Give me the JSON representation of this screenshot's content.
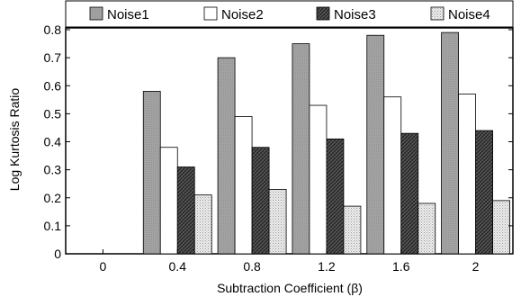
{
  "chart_data": {
    "type": "bar",
    "xlabel": "Subtraction Coefficient (β)",
    "ylabel": "Log Kurtosis Ratio",
    "categories": [
      "0",
      "0.4",
      "0.8",
      "1.2",
      "1.6",
      "2"
    ],
    "ylim": [
      0,
      0.8
    ],
    "yticks": [
      "0",
      "0.1",
      "0.2",
      "0.3",
      "0.4",
      "0.5",
      "0.6",
      "0.7",
      "0.8"
    ],
    "grid": false,
    "legend_position": "top",
    "series": [
      {
        "name": "Noise1",
        "pattern": "gray-shade",
        "values": [
          0,
          0.58,
          0.7,
          0.75,
          0.78,
          0.79
        ]
      },
      {
        "name": "Noise2",
        "pattern": "white",
        "values": [
          0,
          0.38,
          0.49,
          0.53,
          0.56,
          0.57
        ]
      },
      {
        "name": "Noise3",
        "pattern": "dark-crosshatch",
        "values": [
          0,
          0.31,
          0.38,
          0.41,
          0.43,
          0.44
        ]
      },
      {
        "name": "Noise4",
        "pattern": "light-dots",
        "values": [
          0,
          0.21,
          0.23,
          0.17,
          0.18,
          0.19
        ]
      }
    ]
  }
}
